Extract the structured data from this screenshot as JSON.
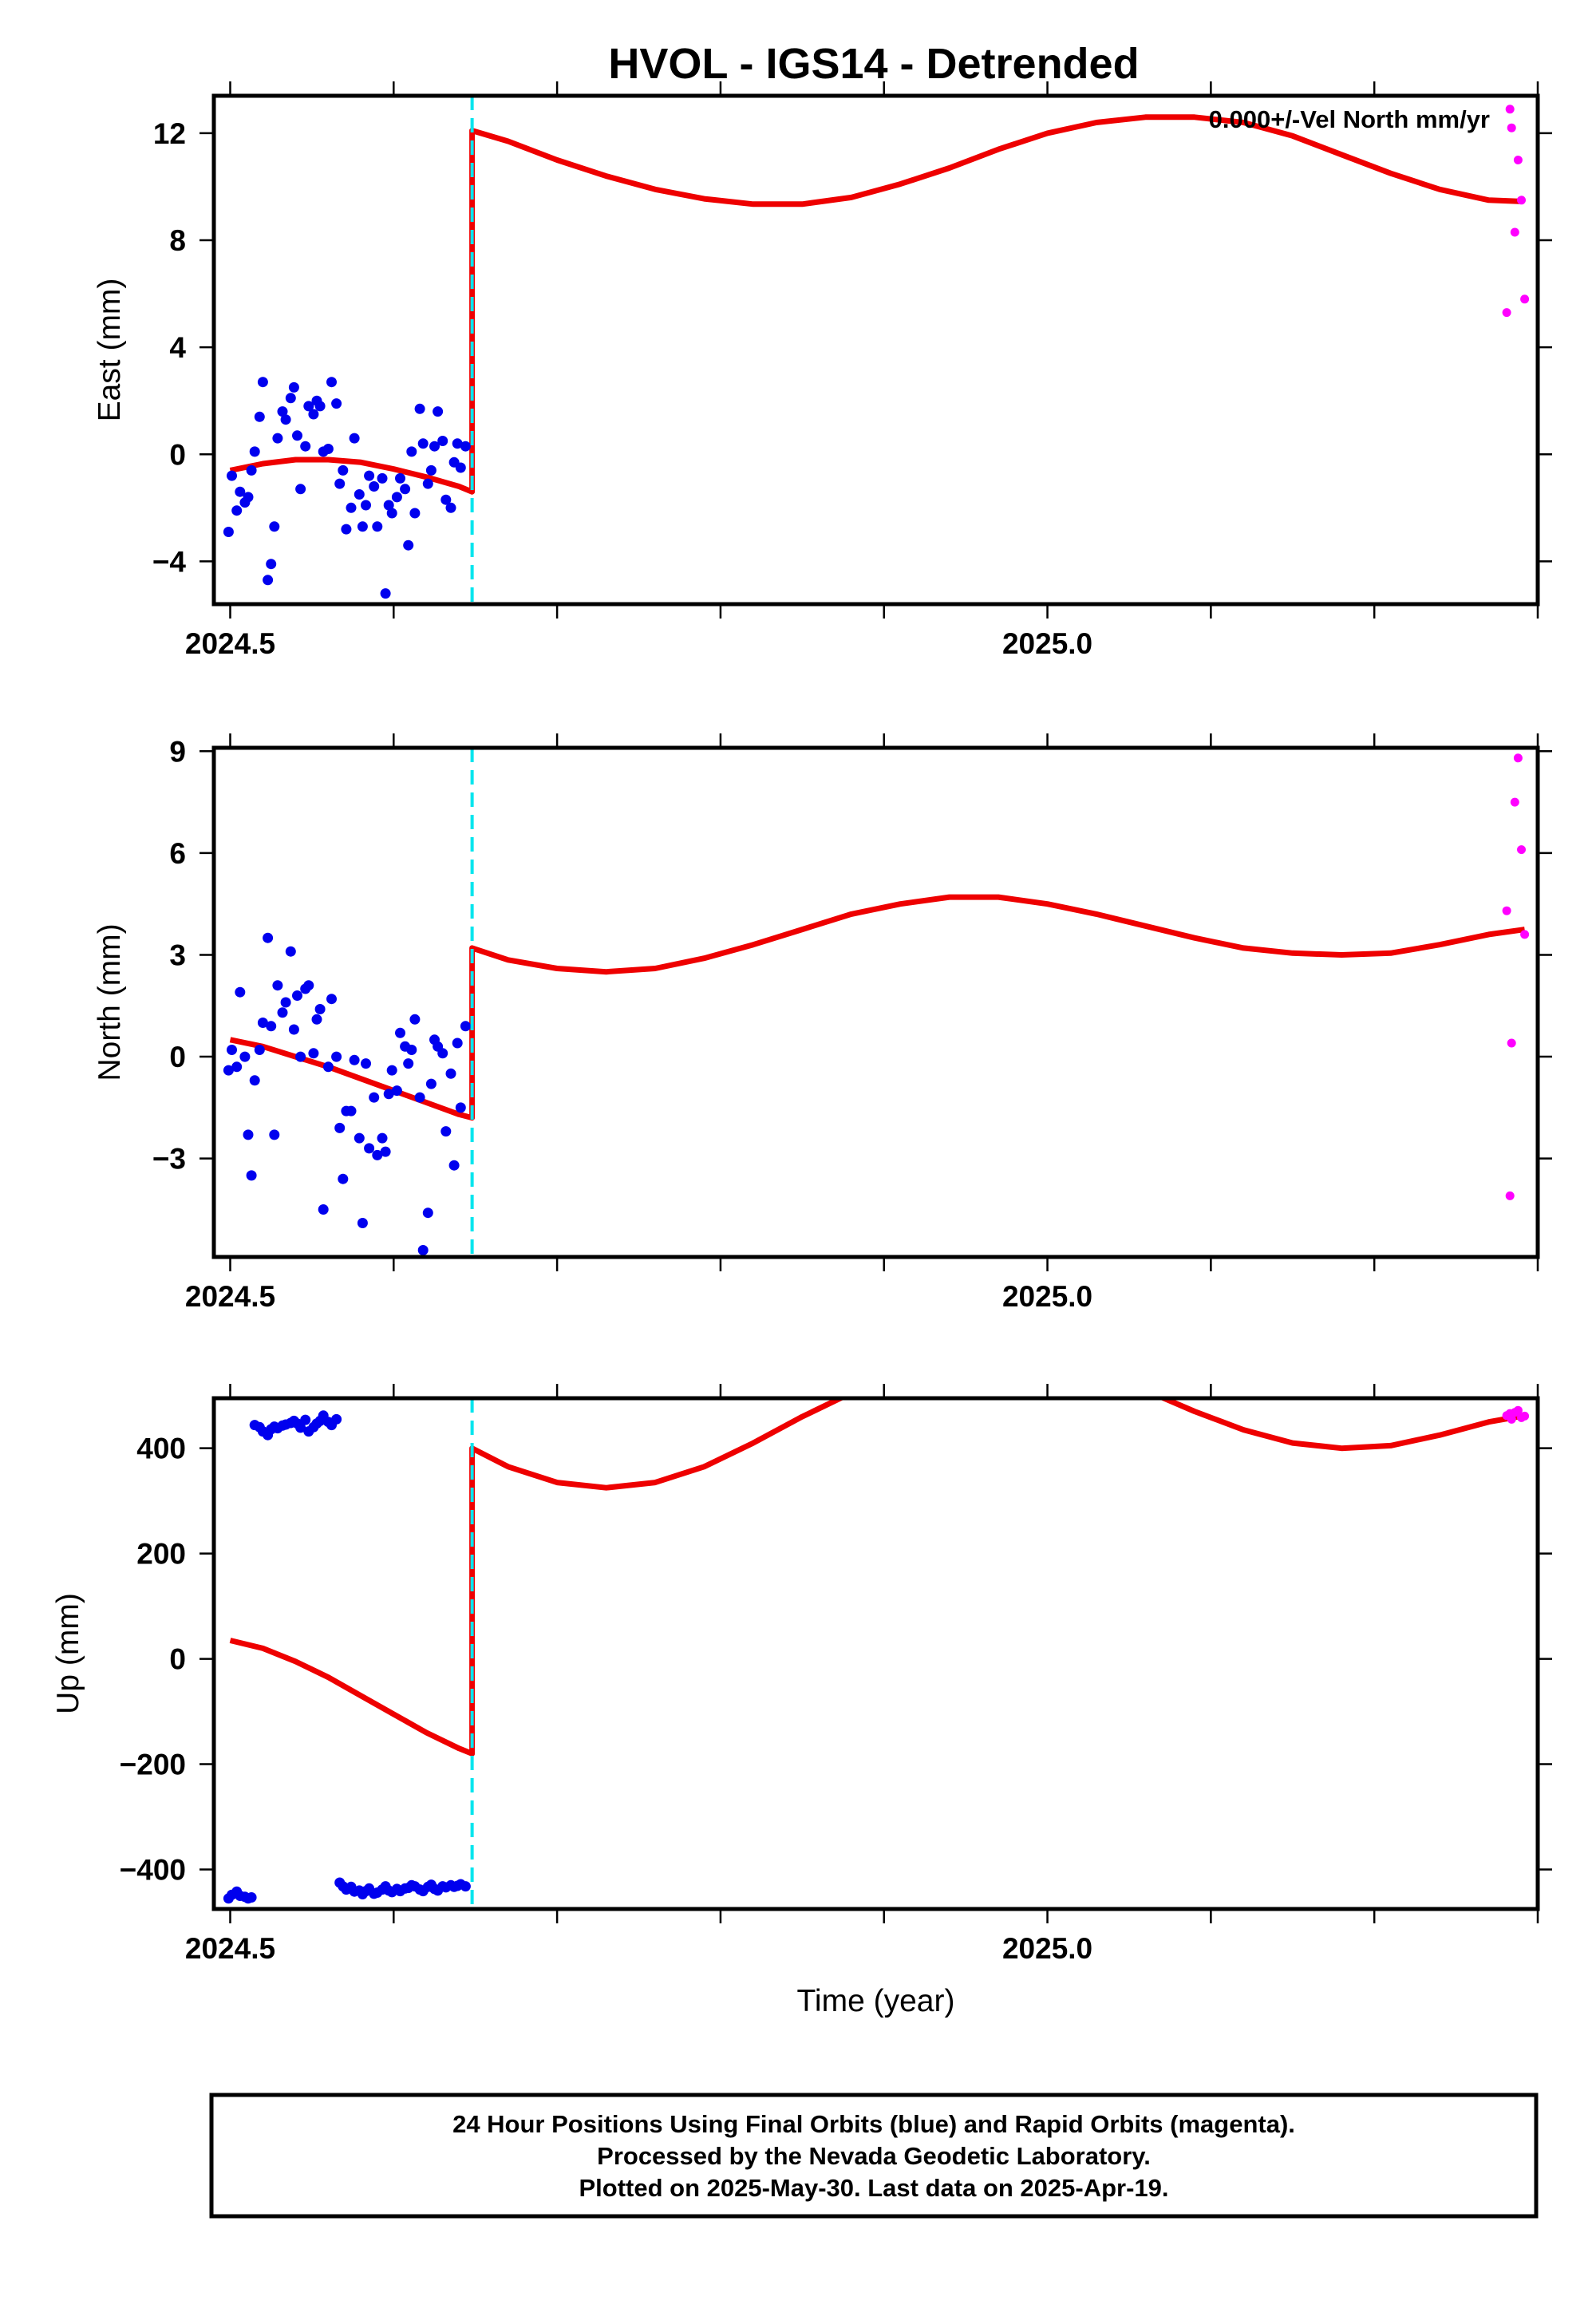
{
  "title": "HVOL - IGS14 - Detrended",
  "colors": {
    "final_orbits": "#0000ee",
    "rapid_orbits": "#ff00ff",
    "model": "#ee0000",
    "equipment_change": "#00e5ee",
    "frame": "#000000"
  },
  "footer": {
    "line1": "24 Hour Positions Using Final Orbits (blue) and Rapid Orbits (magenta).",
    "line2": "Processed by the Nevada Geodetic Laboratory.",
    "line3": "Plotted on 2025-May-30. Last data on 2025-Apr-19."
  },
  "chart_data": [
    {
      "type": "scatter",
      "ylabel": "East (mm)",
      "xlabel": "",
      "annotation": "0.000+/-Vel North mm/yr",
      "xlim": [
        2024.49,
        2025.3
      ],
      "ylim": [
        -5.6,
        13.4
      ],
      "x_ticks": [
        2024.5,
        2025.0
      ],
      "x_tick_labels": [
        "2024.5",
        "2025.0"
      ],
      "y_ticks": [
        -4,
        0,
        4,
        8,
        12
      ],
      "y_tick_labels": [
        "−4",
        "0",
        "4",
        "8",
        "12"
      ],
      "offset_line_x": 2024.648,
      "series": [
        {
          "role": "final",
          "x": [
            2024.499,
            2024.501,
            2024.504,
            2024.506,
            2024.509,
            2024.511,
            2024.513,
            2024.515,
            2024.518,
            2024.52,
            2024.523,
            2024.525,
            2024.527,
            2024.529,
            2024.532,
            2024.534,
            2024.537,
            2024.539,
            2024.541,
            2024.543,
            2024.546,
            2024.548,
            2024.551,
            2024.553,
            2024.555,
            2024.557,
            2024.56,
            2024.562,
            2024.565,
            2024.567,
            2024.569,
            2024.571,
            2024.574,
            2024.576,
            2024.579,
            2024.581,
            2024.583,
            2024.585,
            2024.588,
            2024.59,
            2024.593,
            2024.595,
            2024.597,
            2024.599,
            2024.602,
            2024.604,
            2024.607,
            2024.609,
            2024.611,
            2024.613,
            2024.616,
            2024.618,
            2024.621,
            2024.623,
            2024.625,
            2024.627,
            2024.63,
            2024.632,
            2024.635,
            2024.637,
            2024.639,
            2024.641,
            2024.644
          ],
          "y": [
            -2.9,
            -0.8,
            -2.1,
            -1.4,
            -1.8,
            -1.6,
            -0.6,
            0.1,
            1.4,
            2.7,
            -4.7,
            -4.1,
            -2.7,
            0.6,
            1.6,
            1.3,
            2.1,
            2.5,
            0.7,
            -1.3,
            0.3,
            1.8,
            1.5,
            2.0,
            1.8,
            0.1,
            0.2,
            2.7,
            1.9,
            -1.1,
            -0.6,
            -2.8,
            -2.0,
            0.6,
            -1.5,
            -2.7,
            -1.9,
            -0.8,
            -1.2,
            -2.7,
            -0.9,
            -5.2,
            -1.9,
            -2.2,
            -1.6,
            -0.9,
            -1.3,
            -3.4,
            0.1,
            -2.2,
            1.7,
            0.4,
            -1.1,
            -0.6,
            0.3,
            1.6,
            0.5,
            -1.7,
            -2.0,
            -0.3,
            0.4,
            -0.5,
            0.3
          ]
        },
        {
          "role": "rapid",
          "x": [
            2025.281,
            2025.283,
            2025.284,
            2025.286,
            2025.288,
            2025.29,
            2025.292
          ],
          "y": [
            5.3,
            12.9,
            12.2,
            8.3,
            11.0,
            9.5,
            5.8
          ]
        }
      ],
      "model": {
        "pre_offset_x": [
          2024.5,
          2024.52,
          2024.54,
          2024.56,
          2024.58,
          2024.6,
          2024.62,
          2024.64,
          2024.648
        ],
        "pre_offset_y": [
          -0.6,
          -0.35,
          -0.2,
          -0.2,
          -0.3,
          -0.55,
          -0.85,
          -1.2,
          -1.4
        ],
        "post_offset_x": [
          2024.648,
          2024.67,
          2024.7,
          2024.73,
          2024.76,
          2024.79,
          2024.82,
          2024.85,
          2024.88,
          2024.91,
          2024.94,
          2024.97,
          2025.0,
          2025.03,
          2025.06,
          2025.09,
          2025.12,
          2025.15,
          2025.18,
          2025.21,
          2025.24,
          2025.27,
          2025.29
        ],
        "post_offset_y": [
          12.1,
          11.7,
          11.0,
          10.4,
          9.9,
          9.55,
          9.35,
          9.35,
          9.6,
          10.1,
          10.7,
          11.4,
          12.0,
          12.4,
          12.6,
          12.6,
          12.4,
          11.9,
          11.2,
          10.5,
          9.9,
          9.5,
          9.45
        ]
      }
    },
    {
      "type": "scatter",
      "ylabel": "North (mm)",
      "xlabel": "",
      "xlim": [
        2024.49,
        2025.3
      ],
      "ylim": [
        -5.9,
        9.1
      ],
      "x_ticks": [
        2024.5,
        2025.0
      ],
      "x_tick_labels": [
        "2024.5",
        "2025.0"
      ],
      "y_ticks": [
        -3,
        0,
        3,
        6,
        9
      ],
      "y_tick_labels": [
        "−3",
        "0",
        "3",
        "6",
        "9"
      ],
      "offset_line_x": 2024.648,
      "series": [
        {
          "role": "final",
          "x": [
            2024.499,
            2024.501,
            2024.504,
            2024.506,
            2024.509,
            2024.511,
            2024.513,
            2024.515,
            2024.518,
            2024.52,
            2024.523,
            2024.525,
            2024.527,
            2024.529,
            2024.532,
            2024.534,
            2024.537,
            2024.539,
            2024.541,
            2024.543,
            2024.546,
            2024.548,
            2024.551,
            2024.553,
            2024.555,
            2024.557,
            2024.56,
            2024.562,
            2024.565,
            2024.567,
            2024.569,
            2024.571,
            2024.574,
            2024.576,
            2024.579,
            2024.581,
            2024.583,
            2024.585,
            2024.588,
            2024.59,
            2024.593,
            2024.595,
            2024.597,
            2024.599,
            2024.602,
            2024.604,
            2024.607,
            2024.609,
            2024.611,
            2024.613,
            2024.616,
            2024.618,
            2024.621,
            2024.623,
            2024.625,
            2024.627,
            2024.63,
            2024.632,
            2024.635,
            2024.637,
            2024.639,
            2024.641,
            2024.644
          ],
          "y": [
            -0.4,
            0.2,
            -0.3,
            1.9,
            0.0,
            -2.3,
            -3.5,
            -0.7,
            0.2,
            1.0,
            3.5,
            0.9,
            -2.3,
            2.1,
            1.3,
            1.6,
            3.1,
            0.8,
            1.8,
            0.0,
            2.0,
            2.1,
            0.1,
            1.1,
            1.4,
            -4.5,
            -0.3,
            1.7,
            0.0,
            -2.1,
            -3.6,
            -1.6,
            -1.6,
            -0.1,
            -2.4,
            -4.9,
            -0.2,
            -2.7,
            -1.2,
            -2.9,
            -2.4,
            -2.8,
            -1.1,
            -0.4,
            -1.0,
            0.7,
            0.3,
            -0.2,
            0.2,
            1.1,
            -1.2,
            -5.7,
            -4.6,
            -0.8,
            0.5,
            0.3,
            0.1,
            -2.2,
            -0.5,
            -3.2,
            0.4,
            -1.5,
            0.9
          ]
        },
        {
          "role": "rapid",
          "x": [
            2025.281,
            2025.283,
            2025.284,
            2025.286,
            2025.288,
            2025.29,
            2025.292
          ],
          "y": [
            4.3,
            -4.1,
            0.4,
            7.5,
            8.8,
            6.1,
            3.6
          ]
        }
      ],
      "model": {
        "pre_offset_x": [
          2024.5,
          2024.52,
          2024.54,
          2024.56,
          2024.58,
          2024.6,
          2024.62,
          2024.64,
          2024.648
        ],
        "pre_offset_y": [
          0.5,
          0.3,
          0.0,
          -0.3,
          -0.65,
          -1.0,
          -1.35,
          -1.7,
          -1.8
        ],
        "post_offset_x": [
          2024.648,
          2024.67,
          2024.7,
          2024.73,
          2024.76,
          2024.79,
          2024.82,
          2024.85,
          2024.88,
          2024.91,
          2024.94,
          2024.97,
          2025.0,
          2025.03,
          2025.06,
          2025.09,
          2025.12,
          2025.15,
          2025.18,
          2025.21,
          2025.24,
          2025.27,
          2025.292
        ],
        "post_offset_y": [
          3.2,
          2.85,
          2.6,
          2.5,
          2.6,
          2.9,
          3.3,
          3.75,
          4.2,
          4.5,
          4.7,
          4.7,
          4.5,
          4.2,
          3.85,
          3.5,
          3.2,
          3.05,
          3.0,
          3.05,
          3.3,
          3.6,
          3.75
        ]
      }
    },
    {
      "type": "scatter",
      "ylabel": "Up (mm)",
      "xlabel": "Time (year)",
      "xlim": [
        2024.49,
        2025.3
      ],
      "ylim": [
        -475,
        495
      ],
      "x_ticks": [
        2024.5,
        2025.0
      ],
      "x_tick_labels": [
        "2024.5",
        "2025.0"
      ],
      "y_ticks": [
        -400,
        -200,
        0,
        200,
        400
      ],
      "y_tick_labels": [
        "−400",
        "−200",
        "0",
        "200",
        "400"
      ],
      "offset_line_x": 2024.648,
      "series": [
        {
          "role": "final",
          "x": [
            2024.499,
            2024.501,
            2024.504,
            2024.506,
            2024.509,
            2024.511,
            2024.513,
            2024.515,
            2024.518,
            2024.52,
            2024.523,
            2024.525,
            2024.527,
            2024.529,
            2024.532,
            2024.534,
            2024.537,
            2024.539,
            2024.541,
            2024.543,
            2024.546,
            2024.548,
            2024.551,
            2024.553,
            2024.555,
            2024.557,
            2024.56,
            2024.562,
            2024.565,
            2024.567,
            2024.569,
            2024.571,
            2024.574,
            2024.576,
            2024.579,
            2024.581,
            2024.583,
            2024.585,
            2024.588,
            2024.59,
            2024.593,
            2024.595,
            2024.597,
            2024.599,
            2024.602,
            2024.604,
            2024.607,
            2024.609,
            2024.611,
            2024.613,
            2024.616,
            2024.618,
            2024.621,
            2024.623,
            2024.625,
            2024.627,
            2024.63,
            2024.632,
            2024.635,
            2024.637,
            2024.639,
            2024.641,
            2024.644
          ],
          "y": [
            -455,
            -448,
            -442,
            -450,
            -452,
            -455,
            -453,
            444,
            440,
            432,
            425,
            436,
            441,
            438,
            443,
            445,
            448,
            452,
            447,
            439,
            454,
            432,
            440,
            447,
            452,
            462,
            450,
            444,
            455,
            -425,
            -432,
            -438,
            -433,
            -442,
            -440,
            -447,
            -441,
            -436,
            -446,
            -444,
            -438,
            -432,
            -440,
            -443,
            -437,
            -441,
            -436,
            -435,
            -430,
            -432,
            -438,
            -441,
            -433,
            -429,
            -437,
            -440,
            -432,
            -434,
            -430,
            -433,
            -431,
            -428,
            -432
          ]
        },
        {
          "role": "rapid",
          "x": [
            2025.281,
            2025.283,
            2025.284,
            2025.286,
            2025.288,
            2025.29,
            2025.292
          ],
          "y": [
            462,
            466,
            455,
            468,
            472,
            458,
            461
          ]
        }
      ],
      "model": {
        "pre_offset_x": [
          2024.5,
          2024.52,
          2024.54,
          2024.56,
          2024.58,
          2024.6,
          2024.62,
          2024.64,
          2024.648
        ],
        "pre_offset_y": [
          35,
          20,
          -5,
          -35,
          -70,
          -105,
          -140,
          -170,
          -180
        ],
        "post_offset_x": [
          2024.648,
          2024.67,
          2024.7,
          2024.73,
          2024.76,
          2024.79,
          2024.82,
          2024.85,
          2024.88,
          2024.91,
          2024.94,
          2024.97,
          2025.0,
          2025.03,
          2025.06,
          2025.09,
          2025.12,
          2025.15,
          2025.18,
          2025.21,
          2025.24,
          2025.27,
          2025.292
        ],
        "post_offset_y": [
          400,
          365,
          335,
          325,
          335,
          365,
          410,
          460,
          505,
          545,
          570,
          580,
          570,
          545,
          510,
          470,
          435,
          410,
          400,
          405,
          425,
          450,
          462
        ]
      }
    }
  ]
}
